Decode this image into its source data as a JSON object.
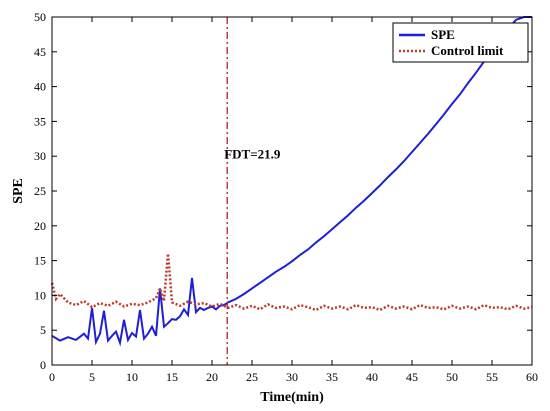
{
  "chart_data": {
    "type": "line",
    "xlabel": "Time(min)",
    "ylabel": "SPE",
    "xlim": [
      0,
      60
    ],
    "ylim": [
      0,
      50
    ],
    "xticks": [
      0,
      5,
      10,
      15,
      20,
      25,
      30,
      35,
      40,
      45,
      50,
      55,
      60
    ],
    "yticks": [
      0,
      5,
      10,
      15,
      20,
      25,
      30,
      35,
      40,
      45,
      50
    ],
    "grid": false,
    "legend_position": "top-right",
    "fault_detection": {
      "x": 21.9,
      "label": "FDT=21.9",
      "color": "#b22222"
    },
    "series": [
      {
        "name": "SPE",
        "color": "#1f1fd6",
        "style": "solid",
        "x": [
          0,
          1,
          2,
          3,
          4,
          4.5,
          5,
          5.5,
          6,
          6.5,
          7,
          7.5,
          8,
          8.5,
          9,
          9.5,
          10,
          10.5,
          11,
          11.5,
          12,
          12.5,
          13,
          13.5,
          14,
          14.5,
          15,
          15.5,
          16,
          16.5,
          17,
          17.5,
          18,
          18.5,
          19,
          19.5,
          20,
          20.5,
          21,
          21.5,
          22,
          23,
          24,
          25,
          26,
          27,
          28,
          29,
          30,
          31,
          32,
          33,
          34,
          35,
          36,
          37,
          38,
          39,
          40,
          41,
          42,
          43,
          44,
          45,
          46,
          47,
          48,
          49,
          50,
          51,
          52,
          53,
          54,
          55,
          56,
          57,
          58,
          59,
          60
        ],
        "values": [
          4.2,
          3.5,
          4.0,
          3.6,
          4.5,
          3.8,
          8.2,
          3.3,
          4.5,
          7.8,
          3.5,
          4.2,
          4.8,
          3.2,
          6.5,
          3.6,
          4.6,
          4.1,
          7.9,
          3.8,
          4.5,
          5.5,
          4.2,
          11.0,
          5.5,
          6.0,
          6.6,
          6.5,
          7.0,
          8.0,
          7.2,
          12.5,
          7.6,
          8.2,
          7.9,
          8.2,
          8.4,
          8.0,
          8.5,
          8.6,
          9.0,
          9.5,
          10.2,
          11.0,
          11.8,
          12.6,
          13.4,
          14.1,
          14.9,
          15.8,
          16.6,
          17.6,
          18.5,
          19.5,
          20.5,
          21.5,
          22.6,
          23.6,
          24.7,
          25.8,
          27.0,
          28.1,
          29.3,
          30.6,
          31.9,
          33.2,
          34.6,
          36.0,
          37.5,
          38.9,
          40.5,
          42.0,
          43.6,
          45.2,
          46.8,
          48.3,
          49.6,
          50.0,
          50.0
        ]
      },
      {
        "name": "Control limit",
        "color": "#c0392b",
        "style": "dotted",
        "x": [
          0,
          0.5,
          1,
          2,
          3,
          4,
          5,
          6,
          7,
          8,
          9,
          10,
          11,
          12,
          13,
          13.5,
          14,
          14.5,
          15,
          16,
          17,
          18,
          19,
          20,
          21,
          22,
          23,
          24,
          25,
          26,
          27,
          28,
          29,
          30,
          31,
          32,
          33,
          34,
          35,
          36,
          37,
          38,
          39,
          40,
          41,
          42,
          43,
          44,
          45,
          46,
          47,
          48,
          49,
          50,
          51,
          52,
          53,
          54,
          55,
          56,
          57,
          58,
          59,
          60
        ],
        "values": [
          11.8,
          9.5,
          10.2,
          9.0,
          8.6,
          9.2,
          8.3,
          8.9,
          8.5,
          9.1,
          8.4,
          8.8,
          8.6,
          9.0,
          9.6,
          11.0,
          9.2,
          16.0,
          9.0,
          8.5,
          9.1,
          8.7,
          8.9,
          8.4,
          8.8,
          8.2,
          8.6,
          8.1,
          8.5,
          8.0,
          8.7,
          8.2,
          8.4,
          8.0,
          8.6,
          8.3,
          7.9,
          8.5,
          8.1,
          8.4,
          8.0,
          8.6,
          8.2,
          8.3,
          7.9,
          8.5,
          8.1,
          8.4,
          8.0,
          8.6,
          8.2,
          8.3,
          8.0,
          8.5,
          8.1,
          8.4,
          8.0,
          8.6,
          8.2,
          8.3,
          8.0,
          8.5,
          8.1,
          8.3
        ]
      }
    ]
  }
}
